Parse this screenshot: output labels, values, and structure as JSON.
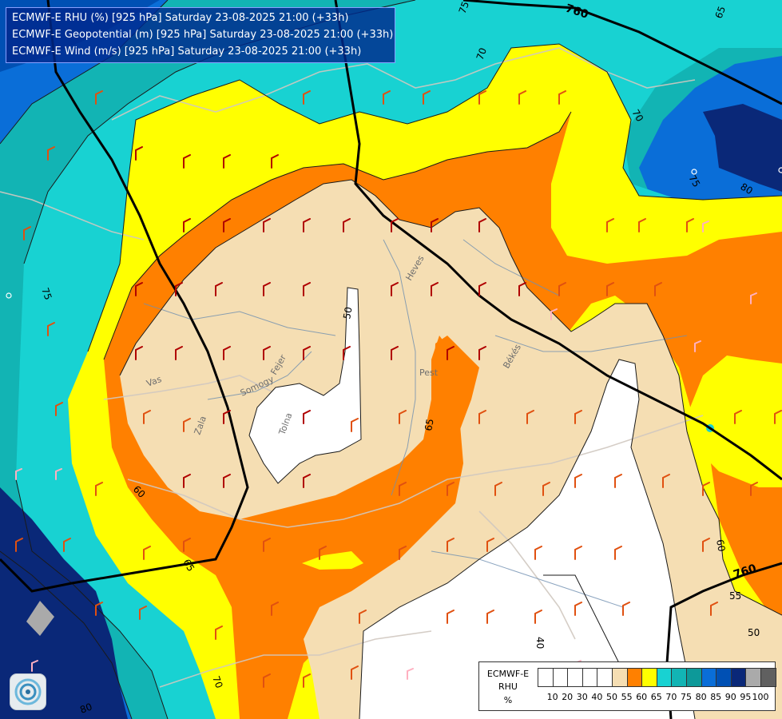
{
  "header": {
    "line1": "ECMWF-E RHU (%) [925 hPa] Saturday 23-08-2025 21:00 (+33h)",
    "line2": "ECMWF-E Geopotential (m) [925 hPa] Saturday 23-08-2025 21:00 (+33h)",
    "line3": "ECMWF-E Wind (m/s) [925 hPa] Saturday 23-08-2025 21:00 (+33h)"
  },
  "legend": {
    "line1": "ECMWF-E",
    "line2": "RHU",
    "unit": "%",
    "ticks": [
      "10",
      "20",
      "30",
      "40",
      "50",
      "55",
      "60",
      "65",
      "70",
      "75",
      "80",
      "85",
      "90",
      "95",
      "100"
    ],
    "colors": [
      "#ffffff",
      "#ffffff",
      "#ffffff",
      "#ffffff",
      "#ffffff",
      "#f5deb3",
      "#ff8000",
      "#ffff00",
      "#18d2d2",
      "#12b4b4",
      "#0d9999",
      "#0a6ed8",
      "#0050b4",
      "#0a2878",
      "#aaaaaa",
      "#606060"
    ]
  },
  "map_labels": {
    "geo_760_top": "760",
    "geo_760_bottom": "760",
    "c75_top": "75",
    "c70_top": "70",
    "c65_topright": "65",
    "c70_right": "70",
    "c75_right": "75",
    "c80_right": "80",
    "c50_center": "50",
    "c65_mid": "65",
    "c60_left": "60",
    "c65_left": "65",
    "c75_left": "75",
    "c70_bottom": "70",
    "c80_bottom": "80",
    "c40_bottom": "40",
    "c60_right": "60",
    "c55_right": "55",
    "c50_right": "50",
    "place_vas": "Vas",
    "place_zala": "Zala",
    "place_somogy": "Somogy",
    "place_fejer": "Fejer",
    "place_tolna": "Tolna",
    "place_heves": "Heves",
    "place_pest": "Pest",
    "place_bekes": "Békés"
  },
  "colors": {
    "rh_95": "#aaaaaa",
    "rh_90": "#0a2878",
    "rh_85": "#0050b4",
    "rh_80": "#0a6ed8",
    "rh_75": "#12b4b4",
    "rh_70": "#18d2d2",
    "rh_65": "#ffff00",
    "rh_60": "#ff8000",
    "rh_55": "#f5deb3",
    "rh_50": "#ffffff"
  }
}
